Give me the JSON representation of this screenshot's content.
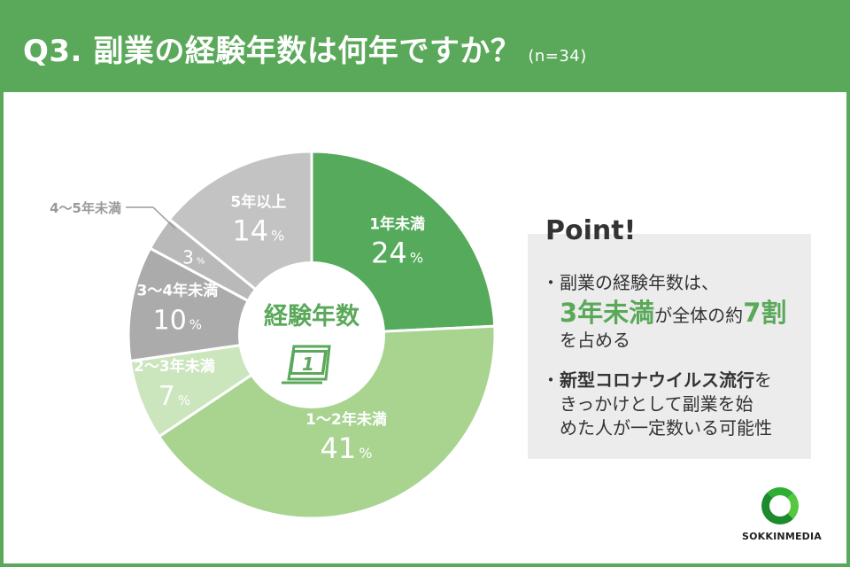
{
  "header": {
    "title": "Q3. 副業の経験年数は何年ですか？",
    "sample": "(n=34)"
  },
  "chart_data": {
    "type": "pie",
    "center_label": "経験年数",
    "center_icon": "calendar-1-icon",
    "percent_unit": "%",
    "slices": [
      {
        "name": "1年未満",
        "value": 24,
        "display": "24",
        "color": "#55aa5c"
      },
      {
        "name": "1〜2年未満",
        "value": 41,
        "display": "41",
        "color": "#a8d490"
      },
      {
        "name": "2〜3年未満",
        "value": 7,
        "display": "7",
        "color": "#cbe5bd"
      },
      {
        "name": "3〜4年未満",
        "value": 10,
        "display": "10",
        "color": "#ababab"
      },
      {
        "name": "4〜5年未満",
        "value": 3,
        "display": "3",
        "color": "#b9b9b9"
      },
      {
        "name": "5年以上",
        "value": 14,
        "display": "14",
        "color": "#c3c3c3"
      }
    ]
  },
  "point": {
    "title": "Point!",
    "bullet": "・",
    "p1_line1": "副業の経験年数は、",
    "p1_hl1": "3年未満",
    "p1_mid": "が全体の約",
    "p1_hl2": "7割",
    "p1_line3": "を占める",
    "p2_bold": "新型コロナウイルス流行",
    "p2_rest1": "を",
    "p2_line2": "きっかけとして副業を始",
    "p2_line3": "めた人が一定数いる可能性"
  },
  "logo": {
    "text": "SOKKINMEDIA"
  }
}
